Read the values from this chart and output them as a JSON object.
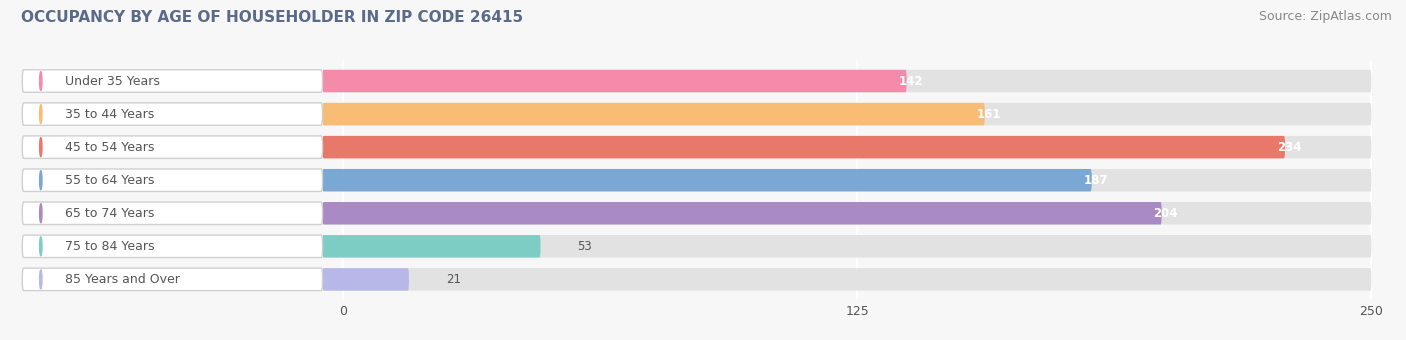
{
  "title": "OCCUPANCY BY AGE OF HOUSEHOLDER IN ZIP CODE 26415",
  "source": "Source: ZipAtlas.com",
  "categories": [
    "Under 35 Years",
    "35 to 44 Years",
    "45 to 54 Years",
    "55 to 64 Years",
    "65 to 74 Years",
    "75 to 84 Years",
    "85 Years and Over"
  ],
  "values": [
    142,
    161,
    234,
    187,
    204,
    53,
    21
  ],
  "bar_colors": [
    "#F48BAB",
    "#F9BC74",
    "#E8786A",
    "#7BA7D4",
    "#A98AC4",
    "#7DCDC4",
    "#B8B8E8"
  ],
  "xlim_data": [
    0,
    250
  ],
  "xticks": [
    0,
    125,
    250
  ],
  "background_color": "#f7f7f7",
  "bar_bg_color": "#e8e8e8",
  "title_fontsize": 11,
  "source_fontsize": 9,
  "label_fontsize": 9,
  "value_fontsize": 8.5,
  "bar_height": 0.68,
  "figsize": [
    14.06,
    3.4
  ],
  "dpi": 100,
  "title_color": "#5a6a8a",
  "label_text_color": "#555555"
}
